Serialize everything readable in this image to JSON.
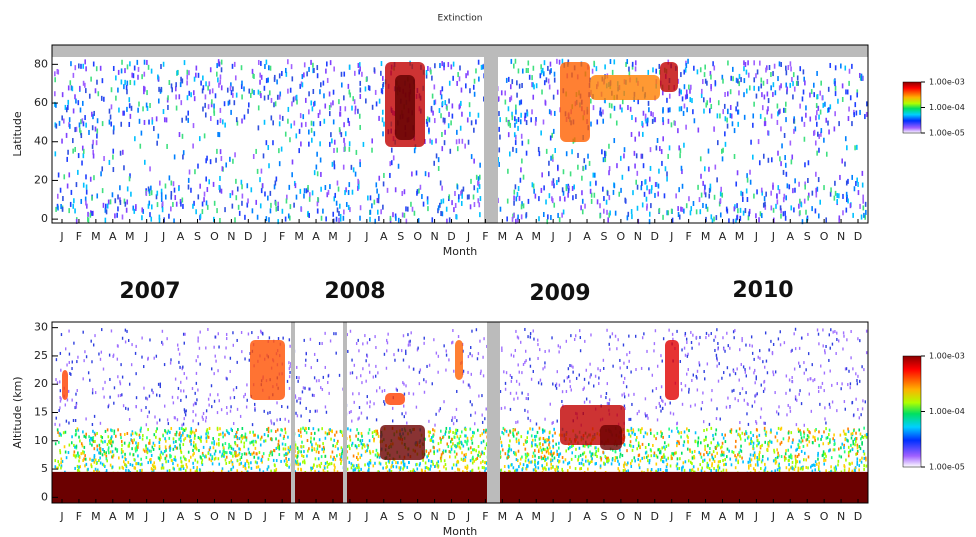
{
  "title": "Extinction",
  "year_labels": [
    "2007",
    "2008",
    "2009",
    "2010"
  ],
  "chart_data": [
    {
      "type": "heatmap",
      "xlabel": "Month",
      "ylabel": "Latitude",
      "categories": [
        "J",
        "F",
        "M",
        "A",
        "M",
        "J",
        "J",
        "A",
        "S",
        "O",
        "N",
        "D",
        "J",
        "F",
        "M",
        "A",
        "M",
        "J",
        "J",
        "A",
        "S",
        "O",
        "N",
        "D",
        "J",
        "F",
        "M",
        "A",
        "M",
        "J",
        "J",
        "A",
        "S",
        "O",
        "N",
        "D",
        "J",
        "F",
        "M",
        "A",
        "M",
        "J",
        "J",
        "A",
        "S",
        "O",
        "N",
        "D"
      ],
      "ylim": [
        -2,
        90
      ],
      "yticks": [
        0,
        20,
        40,
        60,
        80
      ],
      "colorbar": {
        "log": true,
        "lim": [
          1e-05,
          0.001
        ],
        "ticks": [
          {
            "value": 0.001,
            "label": "1.00e-03"
          },
          {
            "value": 0.0001,
            "label": "1.00e-04"
          },
          {
            "value": 1e-05,
            "label": "1.00e-05"
          }
        ]
      }
    },
    {
      "type": "heatmap",
      "xlabel": "Month",
      "ylabel": "Altitude (km)",
      "categories": [
        "J",
        "F",
        "M",
        "A",
        "M",
        "J",
        "J",
        "A",
        "S",
        "O",
        "N",
        "D",
        "J",
        "F",
        "M",
        "A",
        "M",
        "J",
        "J",
        "A",
        "S",
        "O",
        "N",
        "D",
        "J",
        "F",
        "M",
        "A",
        "M",
        "J",
        "J",
        "A",
        "S",
        "O",
        "N",
        "D",
        "J",
        "F",
        "M",
        "A",
        "M",
        "J",
        "J",
        "A",
        "S",
        "O",
        "N",
        "D"
      ],
      "ylim": [
        -1,
        31
      ],
      "yticks": [
        0,
        5,
        10,
        15,
        20,
        25,
        30
      ],
      "colorbar": {
        "log": true,
        "lim": [
          1e-05,
          0.001
        ],
        "ticks": [
          {
            "value": 0.001,
            "label": "1.00e-03"
          },
          {
            "value": 0.0001,
            "label": "1.00e-04"
          },
          {
            "value": 1e-05,
            "label": "1.00e-05"
          }
        ]
      }
    }
  ]
}
